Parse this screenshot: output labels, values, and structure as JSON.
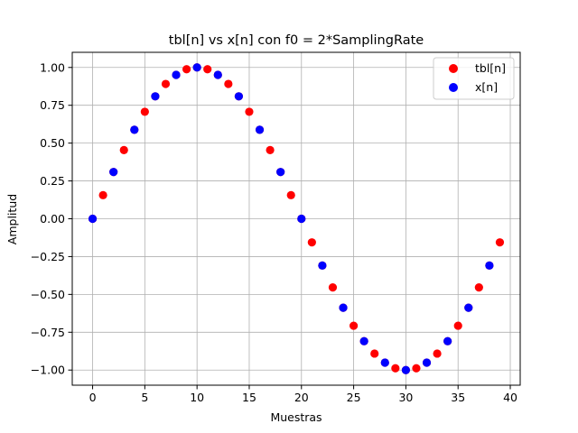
{
  "chart_data": {
    "type": "scatter",
    "title": "tbl[n] vs x[n] con f0 = 2*SamplingRate",
    "xlabel": "Muestras",
    "ylabel": "Amplitud",
    "xlim": [
      -1.95,
      40.95
    ],
    "ylim": [
      -1.1,
      1.1
    ],
    "xticks": [
      0,
      5,
      10,
      15,
      20,
      25,
      30,
      35,
      40
    ],
    "yticks": [
      -1.0,
      -0.75,
      -0.5,
      -0.25,
      0.0,
      0.25,
      0.5,
      0.75,
      1.0
    ],
    "xtick_labels": [
      "0",
      "5",
      "10",
      "15",
      "20",
      "25",
      "30",
      "35",
      "40"
    ],
    "ytick_labels": [
      "−1.00",
      "−0.75",
      "−0.50",
      "−0.25",
      "0.00",
      "0.25",
      "0.50",
      "0.75",
      "1.00"
    ],
    "grid": true,
    "legend_position": "top-right",
    "series": [
      {
        "name": "tbl[n]",
        "color": "#ff0000",
        "x": [
          0,
          1,
          2,
          3,
          4,
          5,
          6,
          7,
          8,
          9,
          10,
          11,
          12,
          13,
          14,
          15,
          16,
          17,
          18,
          19,
          20,
          21,
          22,
          23,
          24,
          25,
          26,
          27,
          28,
          29,
          30,
          31,
          32,
          33,
          34,
          35,
          36,
          37,
          38,
          39
        ],
        "y": [
          0.0,
          0.156,
          0.309,
          0.454,
          0.588,
          0.707,
          0.809,
          0.891,
          0.951,
          0.988,
          1.0,
          0.988,
          0.951,
          0.891,
          0.809,
          0.707,
          0.588,
          0.454,
          0.309,
          0.156,
          0.0,
          -0.156,
          -0.309,
          -0.454,
          -0.588,
          -0.707,
          -0.809,
          -0.891,
          -0.951,
          -0.988,
          -1.0,
          -0.988,
          -0.951,
          -0.891,
          -0.809,
          -0.707,
          -0.588,
          -0.454,
          -0.309,
          -0.156
        ]
      },
      {
        "name": "x[n]",
        "color": "#0000ff",
        "x": [
          0,
          2,
          4,
          6,
          8,
          10,
          12,
          14,
          16,
          18,
          20,
          22,
          24,
          26,
          28,
          30,
          32,
          34,
          36,
          38
        ],
        "y": [
          0.0,
          0.309,
          0.588,
          0.809,
          0.951,
          1.0,
          0.951,
          0.809,
          0.588,
          0.309,
          0.0,
          -0.309,
          -0.588,
          -0.809,
          -0.951,
          -1.0,
          -0.951,
          -0.809,
          -0.588,
          -0.309
        ]
      }
    ]
  }
}
